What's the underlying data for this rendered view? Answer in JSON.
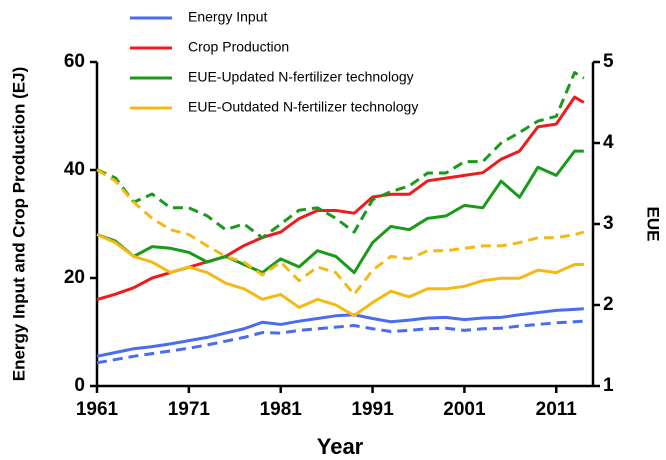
{
  "chart_data": {
    "type": "line",
    "x": [
      1961,
      1963,
      1965,
      1967,
      1969,
      1971,
      1973,
      1975,
      1977,
      1979,
      1981,
      1983,
      1985,
      1987,
      1989,
      1991,
      1993,
      1995,
      1997,
      1999,
      2001,
      2003,
      2005,
      2007,
      2009,
      2011,
      2013,
      2014
    ],
    "xlim": [
      1961,
      2015
    ],
    "xticks": [
      1961,
      1971,
      1981,
      1991,
      2001,
      2011
    ],
    "ylim": [
      0,
      60
    ],
    "yticks": [
      0,
      20,
      40,
      60
    ],
    "y2lim": [
      1,
      5
    ],
    "y2ticks": [
      1,
      2,
      3,
      4,
      5
    ],
    "xlabel": "Year",
    "ylabel": "Energy Input and Crop Production (EJ)",
    "y2label": "EUE",
    "series": [
      {
        "name": "Energy Input",
        "color": "#4a6cf0",
        "values": [
          5.5,
          6.2,
          6.9,
          7.3,
          7.8,
          8.4,
          9,
          9.8,
          10.6,
          11.8,
          11.4,
          12,
          12.5,
          13,
          13.2,
          12.5,
          11.9,
          12.2,
          12.6,
          12.7,
          12.3,
          12.6,
          12.7,
          13.2,
          13.6,
          14,
          14.2,
          14.3
        ]
      },
      {
        "name": "Crop Production",
        "color": "#ee1c1c",
        "values": [
          16,
          17,
          18.2,
          20,
          21,
          22,
          23,
          24,
          26,
          27.5,
          28.5,
          31,
          32.5,
          32.5,
          32,
          35,
          35.5,
          35.5,
          38,
          38.5,
          39,
          39.5,
          42,
          43.5,
          48,
          48.5,
          53.5,
          52.5
        ]
      },
      {
        "name": "EUE-Updated N-fertilizer technology",
        "color": "#1a9a1a",
        "axis": "y2",
        "values": [
          2.87,
          2.79,
          2.6,
          2.72,
          2.7,
          2.65,
          2.53,
          2.6,
          2.5,
          2.4,
          2.57,
          2.47,
          2.67,
          2.6,
          2.4,
          2.77,
          2.97,
          2.93,
          3.07,
          3.1,
          3.23,
          3.2,
          3.53,
          3.33,
          3.7,
          3.6,
          3.9,
          3.9
        ]
      },
      {
        "name": "EUE-Outdated N-fertilizer technology",
        "color": "#f5b915",
        "axis": "y2",
        "values": [
          2.87,
          2.77,
          2.6,
          2.53,
          2.4,
          2.47,
          2.4,
          2.27,
          2.2,
          2.07,
          2.13,
          1.97,
          2.07,
          2,
          1.87,
          2.03,
          2.17,
          2.1,
          2.2,
          2.2,
          2.23,
          2.3,
          2.33,
          2.33,
          2.43,
          2.4,
          2.5,
          2.5
        ]
      },
      {
        "color": "#4a6cf0",
        "dash": true,
        "values": [
          4.3,
          4.9,
          5.5,
          6,
          6.5,
          7,
          7.6,
          8.3,
          9,
          9.9,
          9.8,
          10.3,
          10.6,
          10.9,
          11.2,
          10.6,
          10.1,
          10.3,
          10.6,
          10.7,
          10.3,
          10.6,
          10.7,
          11.1,
          11.4,
          11.7,
          11.9,
          12
        ]
      },
      {
        "color": "#1a9a1a",
        "dash": true,
        "axis": "y2",
        "values": [
          3.67,
          3.57,
          3.27,
          3.37,
          3.2,
          3.2,
          3.1,
          2.93,
          3,
          2.83,
          3,
          3.17,
          3.2,
          3.07,
          2.9,
          3.3,
          3.4,
          3.47,
          3.63,
          3.63,
          3.77,
          3.77,
          4,
          4.13,
          4.27,
          4.33,
          4.87,
          4.8
        ]
      },
      {
        "color": "#f5b915",
        "dash": true,
        "axis": "y2",
        "values": [
          3.67,
          3.53,
          3.27,
          3.07,
          2.93,
          2.87,
          2.73,
          2.6,
          2.53,
          2.37,
          2.53,
          2.3,
          2.47,
          2.4,
          2.13,
          2.43,
          2.6,
          2.57,
          2.67,
          2.67,
          2.7,
          2.73,
          2.73,
          2.77,
          2.83,
          2.83,
          2.87,
          2.9
        ]
      }
    ]
  }
}
